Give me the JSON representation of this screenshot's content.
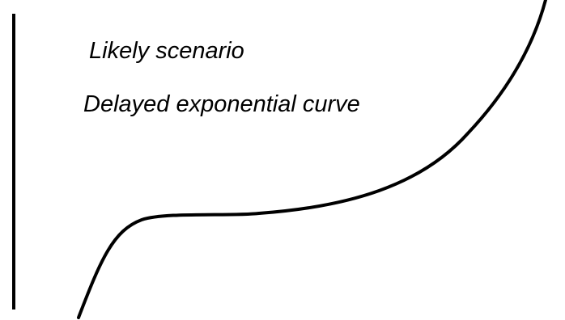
{
  "annotations": {
    "line1": "Likely scenario",
    "line2": "Delayed exponential curve"
  },
  "colors": {
    "ink": "#000000",
    "background": "#ffffff"
  }
}
